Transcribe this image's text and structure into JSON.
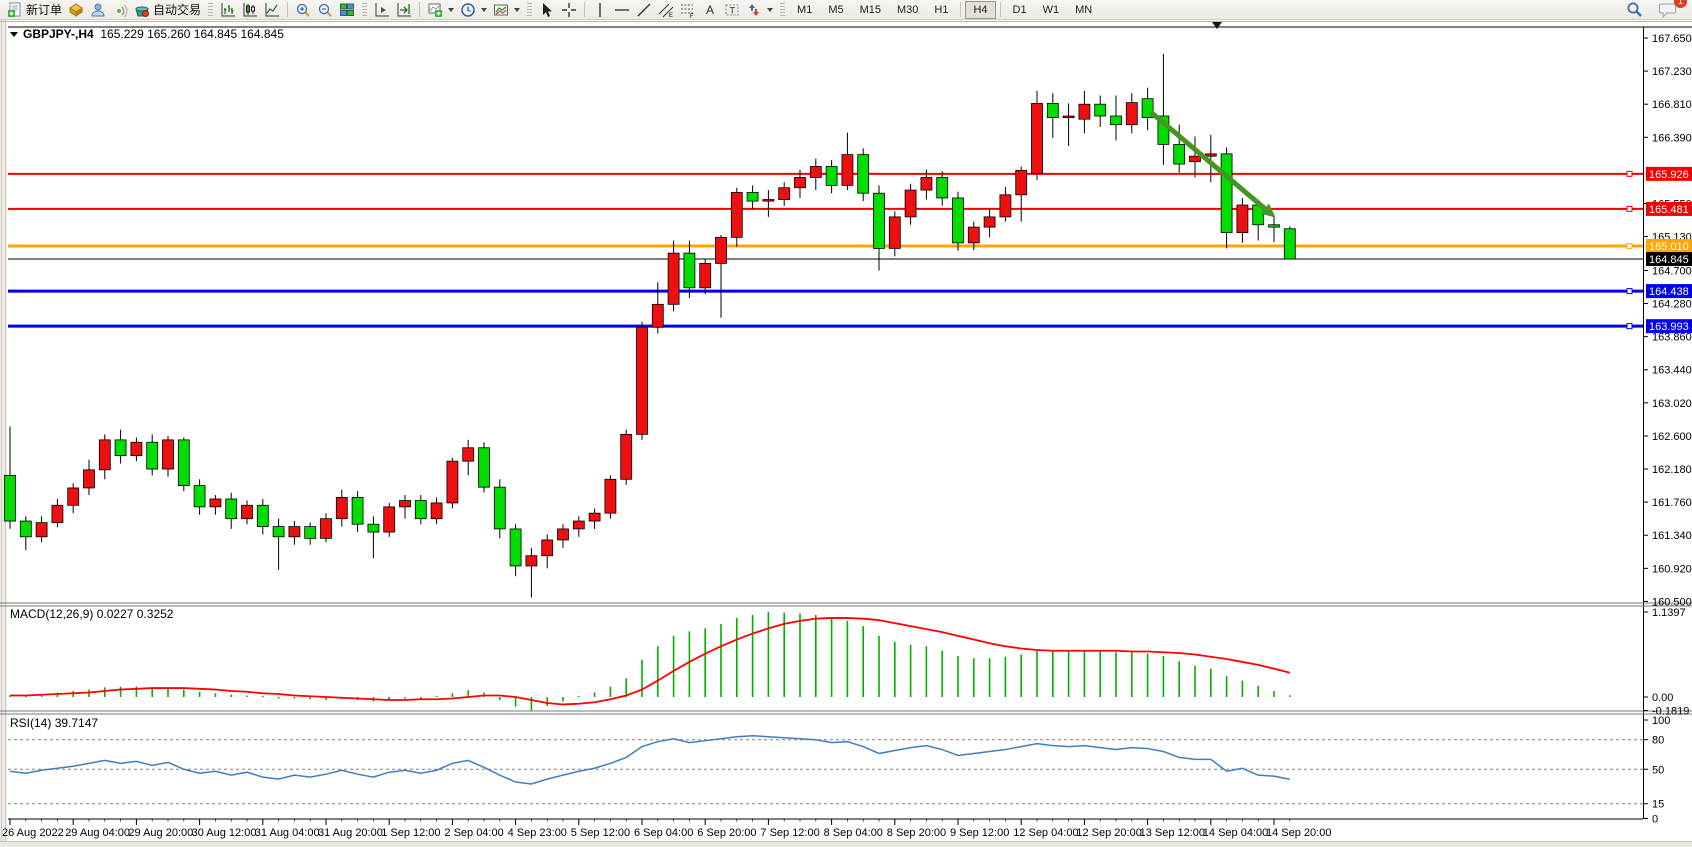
{
  "toolbar": {
    "new_order": "新订单",
    "auto_trading": "自动交易",
    "tool_letters": {
      "channel": "E",
      "fibo": "F",
      "text": "A",
      "label": "T"
    },
    "timeframes": [
      "M1",
      "M5",
      "M15",
      "M30",
      "H1",
      "H4",
      "D1",
      "W1",
      "MN"
    ],
    "active_timeframe": "H4",
    "notification_badge": "1"
  },
  "chart": {
    "symbol_period": "GBPJPY-,H4",
    "ohlc_text": "165.229 165.260 164.845 164.845"
  },
  "panels": {
    "macd_label": "MACD(12,26,9)",
    "macd_values": "0.0227 0.3252",
    "rsi_label": "RSI(14)",
    "rsi_value": "39.7147"
  },
  "chart_data": {
    "type": "candlestick",
    "symbol": "GBPJPY-",
    "timeframe": "H4",
    "ohlc_current": {
      "open": 165.229,
      "high": 165.26,
      "low": 164.845,
      "close": 164.845
    },
    "up_color": "#EE1010",
    "down_color": "#00DD00",
    "price_axis_ticks": [
      "167.650",
      "167.230",
      "166.810",
      "166.390",
      "165.550",
      "165.130",
      "164.700",
      "164.280",
      "163.860",
      "163.440",
      "163.020",
      "162.600",
      "162.180",
      "161.760",
      "161.340",
      "160.920",
      "160.500"
    ],
    "time_labels": [
      "26 Aug 2022",
      "29 Aug 04:00",
      "29 Aug 20:00",
      "30 Aug 12:00",
      "31 Aug 04:00",
      "31 Aug 20:00",
      "1 Sep 12:00",
      "2 Sep 04:00",
      "4 Sep 23:00",
      "5 Sep 12:00",
      "6 Sep 04:00",
      "6 Sep 20:00",
      "7 Sep 12:00",
      "8 Sep 04:00",
      "8 Sep 20:00",
      "9 Sep 12:00",
      "12 Sep 04:00",
      "12 Sep 20:00",
      "13 Sep 12:00",
      "14 Sep 04:00",
      "14 Sep 20:00"
    ],
    "bars_per_label": 4,
    "hlines": [
      {
        "price": 165.926,
        "label": "165.926",
        "color": "#F40000",
        "width": 2
      },
      {
        "price": 165.481,
        "label": "165.481",
        "color": "#F40000",
        "width": 2
      },
      {
        "price": 165.01,
        "label": "165.010",
        "color": "#FFA500",
        "width": 3
      },
      {
        "price": 164.438,
        "label": "164.438",
        "color": "#0000EE",
        "width": 3
      },
      {
        "price": 163.993,
        "label": "163.993",
        "color": "#0000EE",
        "width": 3
      }
    ],
    "current_price": 164.845,
    "current_price_label": "164.845",
    "candles": [
      [
        162.1,
        162.72,
        161.42,
        161.52
      ],
      [
        161.52,
        161.58,
        161.15,
        161.32
      ],
      [
        161.32,
        161.58,
        161.25,
        161.5
      ],
      [
        161.5,
        161.8,
        161.44,
        161.72
      ],
      [
        161.72,
        162.0,
        161.62,
        161.94
      ],
      [
        161.94,
        162.3,
        161.85,
        162.17
      ],
      [
        162.17,
        162.62,
        162.05,
        162.55
      ],
      [
        162.55,
        162.68,
        162.25,
        162.35
      ],
      [
        162.35,
        162.58,
        162.28,
        162.52
      ],
      [
        162.52,
        162.62,
        162.1,
        162.18
      ],
      [
        162.18,
        162.6,
        162.08,
        162.55
      ],
      [
        162.55,
        162.58,
        161.9,
        161.97
      ],
      [
        161.97,
        162.05,
        161.6,
        161.7
      ],
      [
        161.7,
        161.85,
        161.6,
        161.8
      ],
      [
        161.8,
        161.88,
        161.42,
        161.55
      ],
      [
        161.55,
        161.78,
        161.48,
        161.72
      ],
      [
        161.72,
        161.8,
        161.35,
        161.45
      ],
      [
        161.45,
        161.55,
        160.9,
        161.32
      ],
      [
        161.32,
        161.52,
        161.22,
        161.45
      ],
      [
        161.45,
        161.5,
        161.22,
        161.3
      ],
      [
        161.3,
        161.62,
        161.25,
        161.55
      ],
      [
        161.55,
        161.92,
        161.45,
        161.82
      ],
      [
        161.82,
        161.9,
        161.38,
        161.48
      ],
      [
        161.48,
        161.58,
        161.05,
        161.38
      ],
      [
        161.38,
        161.75,
        161.32,
        161.7
      ],
      [
        161.7,
        161.85,
        161.55,
        161.78
      ],
      [
        161.78,
        161.85,
        161.48,
        161.55
      ],
      [
        161.55,
        161.82,
        161.48,
        161.75
      ],
      [
        161.75,
        162.32,
        161.68,
        162.28
      ],
      [
        162.28,
        162.55,
        162.1,
        162.45
      ],
      [
        162.45,
        162.52,
        161.88,
        161.95
      ],
      [
        161.95,
        162.05,
        161.3,
        161.42
      ],
      [
        161.42,
        161.48,
        160.82,
        160.95
      ],
      [
        160.95,
        161.18,
        160.55,
        161.08
      ],
      [
        161.08,
        161.35,
        160.92,
        161.28
      ],
      [
        161.28,
        161.48,
        161.18,
        161.42
      ],
      [
        161.42,
        161.58,
        161.32,
        161.52
      ],
      [
        161.52,
        161.68,
        161.42,
        161.62
      ],
      [
        161.62,
        162.1,
        161.55,
        162.05
      ],
      [
        162.05,
        162.68,
        161.98,
        162.62
      ],
      [
        162.62,
        164.05,
        162.55,
        163.98
      ],
      [
        163.98,
        164.55,
        163.9,
        164.27
      ],
      [
        164.27,
        165.08,
        164.18,
        164.92
      ],
      [
        164.92,
        165.08,
        164.35,
        164.48
      ],
      [
        164.48,
        164.85,
        164.4,
        164.79
      ],
      [
        164.79,
        165.15,
        164.1,
        165.12
      ],
      [
        165.12,
        165.75,
        165.0,
        165.69
      ],
      [
        165.69,
        165.78,
        165.48,
        165.58
      ],
      [
        165.58,
        165.72,
        165.38,
        165.6
      ],
      [
        165.6,
        165.82,
        165.52,
        165.75
      ],
      [
        165.75,
        165.98,
        165.62,
        165.88
      ],
      [
        165.88,
        166.12,
        165.72,
        166.02
      ],
      [
        166.02,
        166.1,
        165.68,
        165.78
      ],
      [
        165.78,
        166.45,
        165.72,
        166.17
      ],
      [
        166.17,
        166.25,
        165.58,
        165.68
      ],
      [
        165.68,
        165.78,
        164.7,
        164.98
      ],
      [
        164.98,
        165.45,
        164.88,
        165.38
      ],
      [
        165.38,
        165.8,
        165.28,
        165.72
      ],
      [
        165.72,
        165.98,
        165.6,
        165.88
      ],
      [
        165.88,
        165.96,
        165.52,
        165.62
      ],
      [
        165.62,
        165.7,
        164.95,
        165.05
      ],
      [
        165.05,
        165.32,
        164.96,
        165.25
      ],
      [
        165.25,
        165.48,
        165.12,
        165.38
      ],
      [
        165.38,
        165.76,
        165.32,
        165.66
      ],
      [
        165.66,
        166.02,
        165.32,
        165.97
      ],
      [
        165.93,
        166.98,
        165.85,
        166.82
      ],
      [
        166.82,
        166.95,
        166.38,
        166.64
      ],
      [
        166.64,
        166.82,
        166.28,
        166.66
      ],
      [
        166.62,
        166.98,
        166.44,
        166.81
      ],
      [
        166.81,
        166.92,
        166.52,
        166.66
      ],
      [
        166.66,
        166.92,
        166.35,
        166.55
      ],
      [
        166.55,
        166.95,
        166.44,
        166.83
      ],
      [
        166.88,
        167.02,
        166.48,
        166.64
      ],
      [
        166.66,
        167.45,
        166.04,
        166.3
      ],
      [
        166.3,
        166.55,
        165.94,
        166.05
      ],
      [
        166.08,
        166.4,
        165.88,
        166.15
      ],
      [
        166.15,
        166.42,
        165.82,
        166.18
      ],
      [
        166.18,
        166.26,
        164.98,
        165.18
      ],
      [
        165.18,
        165.62,
        165.05,
        165.53
      ],
      [
        165.53,
        165.6,
        165.08,
        165.28
      ],
      [
        165.28,
        165.4,
        165.06,
        165.25
      ],
      [
        165.229,
        165.26,
        164.845,
        164.845
      ]
    ],
    "macd": {
      "params": [
        12,
        26,
        9
      ],
      "main_current": 0.0227,
      "signal_current": 0.3252,
      "axis_labels": [
        "1.1397",
        "0.00",
        "-0.1819"
      ],
      "axis_values": [
        1.1397,
        0.0,
        -0.1819
      ],
      "histogram_color": "#00B000",
      "signal_color": "#FF0000",
      "histogram": [
        0.02,
        0.03,
        0.04,
        0.06,
        0.08,
        0.1,
        0.13,
        0.14,
        0.14,
        0.13,
        0.13,
        0.1,
        0.07,
        0.05,
        0.03,
        0.02,
        0.0,
        -0.02,
        -0.02,
        -0.03,
        -0.04,
        -0.03,
        -0.04,
        -0.06,
        -0.04,
        -0.02,
        -0.02,
        0.0,
        0.05,
        0.09,
        0.06,
        -0.04,
        -0.13,
        -0.18,
        -0.12,
        -0.06,
        0.0,
        0.06,
        0.14,
        0.25,
        0.5,
        0.68,
        0.82,
        0.88,
        0.92,
        0.98,
        1.06,
        1.1,
        1.14,
        1.13,
        1.12,
        1.1,
        1.05,
        1.02,
        0.95,
        0.82,
        0.74,
        0.7,
        0.68,
        0.62,
        0.55,
        0.52,
        0.52,
        0.54,
        0.57,
        0.62,
        0.63,
        0.62,
        0.63,
        0.62,
        0.6,
        0.6,
        0.58,
        0.55,
        0.48,
        0.42,
        0.38,
        0.28,
        0.22,
        0.15,
        0.08,
        0.0227
      ],
      "signal": [
        0.02,
        0.02,
        0.03,
        0.04,
        0.05,
        0.06,
        0.08,
        0.1,
        0.11,
        0.12,
        0.12,
        0.12,
        0.11,
        0.1,
        0.08,
        0.07,
        0.05,
        0.04,
        0.02,
        0.01,
        0.0,
        -0.01,
        -0.02,
        -0.03,
        -0.04,
        -0.04,
        -0.03,
        -0.03,
        -0.02,
        0.0,
        0.02,
        0.02,
        0.0,
        -0.04,
        -0.08,
        -0.1,
        -0.09,
        -0.07,
        -0.03,
        0.02,
        0.1,
        0.22,
        0.35,
        0.47,
        0.58,
        0.68,
        0.77,
        0.85,
        0.92,
        0.98,
        1.02,
        1.05,
        1.06,
        1.06,
        1.05,
        1.03,
        0.99,
        0.95,
        0.91,
        0.87,
        0.82,
        0.77,
        0.72,
        0.68,
        0.65,
        0.63,
        0.62,
        0.62,
        0.62,
        0.62,
        0.62,
        0.61,
        0.61,
        0.6,
        0.59,
        0.57,
        0.54,
        0.51,
        0.47,
        0.43,
        0.38,
        0.3252
      ]
    },
    "rsi": {
      "period": 14,
      "current": 39.7147,
      "levels": [
        80,
        50,
        15
      ],
      "axis_labels": [
        "100",
        "80",
        "50",
        "15",
        "0"
      ],
      "axis_values": [
        100,
        80,
        50,
        15,
        0
      ],
      "color": "#3E7EC1",
      "values": [
        48,
        46,
        49,
        51,
        53,
        56,
        59,
        56,
        58,
        54,
        57,
        50,
        46,
        48,
        44,
        47,
        42,
        40,
        44,
        42,
        45,
        49,
        45,
        42,
        47,
        49,
        46,
        49,
        56,
        59,
        52,
        44,
        37,
        35,
        40,
        44,
        48,
        51,
        56,
        62,
        73,
        78,
        81,
        77,
        79,
        81,
        83,
        84,
        83,
        82,
        81,
        80,
        77,
        78,
        73,
        66,
        69,
        72,
        74,
        70,
        64,
        66,
        68,
        70,
        73,
        76,
        74,
        73,
        74,
        72,
        70,
        72,
        71,
        68,
        62,
        60,
        60,
        48,
        51,
        44,
        43,
        39.7147
      ]
    },
    "arrow": {
      "from_bar": 72.2,
      "from_price": 166.71,
      "to_bar": 80.1,
      "to_price": 165.37,
      "color": "#449622",
      "width": 5
    }
  }
}
